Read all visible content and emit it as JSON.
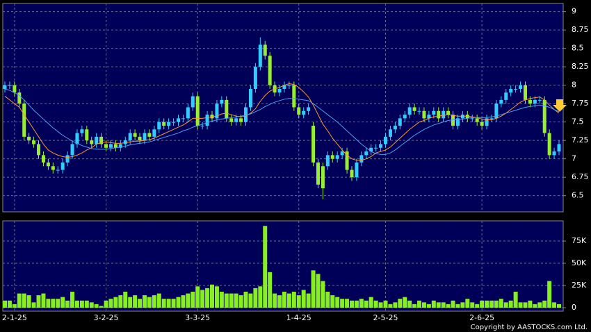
{
  "chart_data": [
    {
      "type": "candlestick",
      "categories": [
        null,
        null,
        "2-1-25",
        null,
        null,
        null,
        null,
        null,
        null,
        null,
        null,
        null,
        null,
        null,
        null,
        null,
        null,
        null,
        null,
        null,
        null,
        "3-2-25",
        null,
        null,
        null,
        null,
        null,
        null,
        null,
        null,
        null,
        null,
        null,
        null,
        null,
        null,
        null,
        null,
        null,
        null,
        "3-3-25",
        null,
        null,
        null,
        null,
        null,
        null,
        null,
        null,
        null,
        null,
        null,
        null,
        null,
        null,
        null,
        null,
        null,
        null,
        null,
        null,
        "1-4-25",
        null,
        null,
        null,
        null,
        null,
        null,
        null,
        null,
        null,
        null,
        null,
        null,
        null,
        null,
        null,
        null,
        null,
        "2-5-25",
        null,
        null,
        null,
        null,
        null,
        null,
        null,
        null,
        null,
        null,
        null,
        null,
        null,
        null,
        null,
        null,
        null,
        null,
        null,
        "2-6-25",
        null,
        null,
        null,
        null,
        null,
        null,
        null,
        null,
        null,
        null,
        null,
        null,
        null,
        null,
        null,
        null
      ],
      "open": [
        7.95,
        8.0,
        8.0,
        7.9,
        7.75,
        7.3,
        7.25,
        7.2,
        7.05,
        6.95,
        6.9,
        6.85,
        6.85,
        6.95,
        7.05,
        7.2,
        7.35,
        7.4,
        7.25,
        7.2,
        7.3,
        7.2,
        7.15,
        7.2,
        7.15,
        7.2,
        7.25,
        7.35,
        7.3,
        7.25,
        7.35,
        7.3,
        7.4,
        7.5,
        7.45,
        7.5,
        7.5,
        7.55,
        7.55,
        7.7,
        7.85,
        7.45,
        7.45,
        7.6,
        7.55,
        7.75,
        7.8,
        7.55,
        7.5,
        7.55,
        7.5,
        7.7,
        7.95,
        8.25,
        8.55,
        8.4,
        8.0,
        7.9,
        7.95,
        8.0,
        8.0,
        7.7,
        7.6,
        7.65,
        7.45,
        6.95,
        6.9,
        6.9,
        7.05,
        7.0,
        7.05,
        7.1,
        6.85,
        6.75,
        6.95,
        7.05,
        7.1,
        7.15,
        7.15,
        7.2,
        7.3,
        7.4,
        7.45,
        7.55,
        7.6,
        7.7,
        7.65,
        7.65,
        7.55,
        7.6,
        7.65,
        7.55,
        7.65,
        7.6,
        7.45,
        7.55,
        7.6,
        7.55,
        7.55,
        7.5,
        7.45,
        7.55,
        7.55,
        7.75,
        7.8,
        7.9,
        7.95,
        7.95,
        8.0,
        7.8,
        7.75,
        7.8,
        7.8,
        7.35,
        7.05,
        7.1
      ],
      "high": [
        8.05,
        8.05,
        8.05,
        7.95,
        7.8,
        7.35,
        7.3,
        7.25,
        7.1,
        7.0,
        6.95,
        6.9,
        7.0,
        7.1,
        7.25,
        7.4,
        7.45,
        7.45,
        7.3,
        7.35,
        7.35,
        7.25,
        7.25,
        7.25,
        7.25,
        7.3,
        7.4,
        7.4,
        7.35,
        7.4,
        7.4,
        7.45,
        7.55,
        7.55,
        7.55,
        7.55,
        7.6,
        7.6,
        7.75,
        7.9,
        7.9,
        7.5,
        7.65,
        7.65,
        7.8,
        7.85,
        7.85,
        7.6,
        7.6,
        7.6,
        7.75,
        8.0,
        8.3,
        8.65,
        8.6,
        8.45,
        8.05,
        8.0,
        8.05,
        8.05,
        8.05,
        7.75,
        7.7,
        7.75,
        7.5,
        7.0,
        6.95,
        7.1,
        7.1,
        7.1,
        7.15,
        7.15,
        6.9,
        7.0,
        7.1,
        7.15,
        7.2,
        7.2,
        7.25,
        7.35,
        7.45,
        7.5,
        7.6,
        7.65,
        7.75,
        7.75,
        7.7,
        7.7,
        7.65,
        7.7,
        7.7,
        7.7,
        7.7,
        7.65,
        7.6,
        7.65,
        7.65,
        7.6,
        7.6,
        7.55,
        7.6,
        7.6,
        7.8,
        7.85,
        7.95,
        8.0,
        8.0,
        8.05,
        8.05,
        7.85,
        7.85,
        7.85,
        7.85,
        7.4,
        7.15,
        7.25
      ],
      "low": [
        7.9,
        7.95,
        7.85,
        7.7,
        7.25,
        7.2,
        7.15,
        7.0,
        6.9,
        6.85,
        6.8,
        6.8,
        6.8,
        6.9,
        7.0,
        7.15,
        7.3,
        7.2,
        7.15,
        7.15,
        7.15,
        7.1,
        7.1,
        7.1,
        7.1,
        7.15,
        7.2,
        7.25,
        7.2,
        7.2,
        7.25,
        7.25,
        7.35,
        7.4,
        7.4,
        7.45,
        7.45,
        7.5,
        7.5,
        7.65,
        7.4,
        7.4,
        7.4,
        7.5,
        7.5,
        7.7,
        7.5,
        7.45,
        7.45,
        7.45,
        7.45,
        7.65,
        7.9,
        8.2,
        8.35,
        7.95,
        7.85,
        7.85,
        7.9,
        7.95,
        7.65,
        7.55,
        7.55,
        7.6,
        6.9,
        6.6,
        6.45,
        6.85,
        6.95,
        6.95,
        7.0,
        6.8,
        6.7,
        6.7,
        6.9,
        7.0,
        7.05,
        7.1,
        7.1,
        7.15,
        7.25,
        7.35,
        7.4,
        7.5,
        7.55,
        7.6,
        7.6,
        7.5,
        7.5,
        7.55,
        7.5,
        7.5,
        7.55,
        7.4,
        7.4,
        7.5,
        7.5,
        7.5,
        7.45,
        7.4,
        7.4,
        7.5,
        7.5,
        7.7,
        7.75,
        7.85,
        7.9,
        7.9,
        7.75,
        7.7,
        7.7,
        7.75,
        7.3,
        7.0,
        7.0,
        7.05
      ],
      "close": [
        8.0,
        8.0,
        7.9,
        7.75,
        7.3,
        7.25,
        7.2,
        7.05,
        6.95,
        6.9,
        6.85,
        6.85,
        6.95,
        7.05,
        7.2,
        7.35,
        7.4,
        7.25,
        7.2,
        7.3,
        7.2,
        7.15,
        7.2,
        7.15,
        7.2,
        7.25,
        7.35,
        7.3,
        7.25,
        7.35,
        7.3,
        7.4,
        7.5,
        7.45,
        7.5,
        7.5,
        7.55,
        7.55,
        7.7,
        7.85,
        7.45,
        7.45,
        7.6,
        7.55,
        7.75,
        7.8,
        7.55,
        7.5,
        7.55,
        7.5,
        7.7,
        7.95,
        8.25,
        8.55,
        8.4,
        8.0,
        7.9,
        7.95,
        8.0,
        8.0,
        7.7,
        7.6,
        7.65,
        7.7,
        6.95,
        6.65,
        6.6,
        7.05,
        7.0,
        7.05,
        7.1,
        6.85,
        6.75,
        6.95,
        7.05,
        7.1,
        7.15,
        7.15,
        7.2,
        7.3,
        7.4,
        7.45,
        7.55,
        7.6,
        7.7,
        7.65,
        7.65,
        7.55,
        7.6,
        7.65,
        7.55,
        7.65,
        7.6,
        7.45,
        7.55,
        7.6,
        7.55,
        7.55,
        7.5,
        7.45,
        7.55,
        7.55,
        7.75,
        7.8,
        7.9,
        7.95,
        7.95,
        8.0,
        7.8,
        7.75,
        7.8,
        7.8,
        7.35,
        7.05,
        7.1,
        7.2
      ],
      "up_color": "#33ccff",
      "down_color": "#99ee33",
      "series": [
        {
          "color": "#ff9933",
          "values": [
            7.85,
            7.8,
            7.75,
            7.7,
            7.6,
            7.5,
            7.4,
            7.3,
            7.2,
            7.12,
            7.08,
            7.05,
            7.03,
            7.02,
            7.03,
            7.05,
            7.08,
            7.12,
            7.15,
            7.2,
            7.22,
            7.23,
            7.22,
            7.21,
            7.21,
            7.22,
            7.23,
            7.24,
            7.24,
            7.25,
            7.26,
            7.28,
            7.31,
            7.34,
            7.37,
            7.4,
            7.43,
            7.46,
            7.5,
            7.55,
            7.55,
            7.55,
            7.56,
            7.57,
            7.58,
            7.61,
            7.62,
            7.6,
            7.58,
            7.57,
            7.58,
            7.62,
            7.68,
            7.78,
            7.86,
            7.92,
            7.95,
            7.97,
            8.0,
            8.02,
            8.01,
            7.97,
            7.91,
            7.84,
            7.73,
            7.6,
            7.47,
            7.38,
            7.28,
            7.2,
            7.12,
            7.05,
            7.0,
            6.98,
            6.98,
            7.0,
            7.03,
            7.08,
            7.1,
            7.12,
            7.16,
            7.22,
            7.28,
            7.34,
            7.4,
            7.45,
            7.5,
            7.52,
            7.55,
            7.57,
            7.58,
            7.59,
            7.6,
            7.59,
            7.58,
            7.58,
            7.58,
            7.57,
            7.56,
            7.54,
            7.53,
            7.53,
            7.55,
            7.58,
            7.62,
            7.67,
            7.72,
            7.77,
            7.8,
            7.82,
            7.83,
            7.84,
            7.8,
            7.73,
            7.67,
            7.62
          ]
        },
        {
          "color": "#4f9ff0",
          "values": [
            7.95,
            7.93,
            7.9,
            7.86,
            7.8,
            7.73,
            7.66,
            7.6,
            7.54,
            7.48,
            7.42,
            7.37,
            7.32,
            7.28,
            7.24,
            7.21,
            7.18,
            7.16,
            7.14,
            7.13,
            7.13,
            7.13,
            7.14,
            7.15,
            7.16,
            7.17,
            7.19,
            7.2,
            7.21,
            7.22,
            7.23,
            7.25,
            7.27,
            7.29,
            7.31,
            7.33,
            7.35,
            7.38,
            7.4,
            7.43,
            7.45,
            7.47,
            7.49,
            7.51,
            7.53,
            7.54,
            7.55,
            7.56,
            7.57,
            7.58,
            7.59,
            7.61,
            7.64,
            7.67,
            7.71,
            7.74,
            7.77,
            7.79,
            7.81,
            7.82,
            7.82,
            7.81,
            7.8,
            7.79,
            7.75,
            7.7,
            7.65,
            7.6,
            7.55,
            7.5,
            7.44,
            7.38,
            7.32,
            7.26,
            7.2,
            7.15,
            7.1,
            7.07,
            7.06,
            7.06,
            7.08,
            7.12,
            7.17,
            7.22,
            7.27,
            7.32,
            7.36,
            7.4,
            7.43,
            7.46,
            7.48,
            7.5,
            7.52,
            7.53,
            7.53,
            7.54,
            7.55,
            7.56,
            7.56,
            7.56,
            7.56,
            7.57,
            7.58,
            7.6,
            7.62,
            7.64,
            7.66,
            7.68,
            7.7,
            7.71,
            7.72,
            7.73,
            7.72,
            7.7,
            7.67,
            7.64
          ]
        }
      ],
      "ylim": [
        6.28,
        9.11
      ],
      "yticks": [
        6.5,
        6.75,
        7,
        7.25,
        7.5,
        7.75,
        8,
        8.25,
        8.5,
        8.75,
        9
      ],
      "grid": true
    },
    {
      "type": "bar",
      "values": [
        8000,
        8000,
        4000,
        16000,
        16000,
        14000,
        6000,
        14000,
        16000,
        10000,
        10000,
        10000,
        12000,
        8000,
        18000,
        8000,
        8000,
        8000,
        6000,
        4000,
        2000,
        8000,
        10000,
        12000,
        14000,
        18000,
        12000,
        14000,
        10000,
        14000,
        12000,
        14000,
        16000,
        10000,
        10000,
        10000,
        12000,
        14000,
        16000,
        18000,
        24000,
        20000,
        22000,
        26000,
        24000,
        18000,
        16000,
        16000,
        16000,
        14000,
        18000,
        16000,
        22000,
        24000,
        92000,
        40000,
        16000,
        14000,
        18000,
        16000,
        18000,
        14000,
        20000,
        16000,
        42000,
        38000,
        30000,
        18000,
        14000,
        12000,
        10000,
        10000,
        8000,
        8000,
        10000,
        8000,
        12000,
        8000,
        6000,
        8000,
        4000,
        6000,
        10000,
        12000,
        8000,
        4000,
        8000,
        6000,
        4000,
        8000,
        6000,
        6000,
        4000,
        8000,
        4000,
        6000,
        10000,
        6000,
        4000,
        8000,
        8000,
        8000,
        8000,
        10000,
        6000,
        8000,
        18000,
        6000,
        6000,
        8000,
        4000,
        6000,
        8000,
        30000,
        6000,
        4000
      ],
      "color": "#88ee22",
      "ylim": [
        -3900,
        97700
      ],
      "yticks": [
        0,
        {
          "value": 25000,
          "label": "25K"
        },
        {
          "value": 50000,
          "label": "50K"
        },
        {
          "value": 75000,
          "label": "75K"
        }
      ],
      "grid": true
    }
  ],
  "footer": "Copyright by AASTOCKS.com Ltd."
}
